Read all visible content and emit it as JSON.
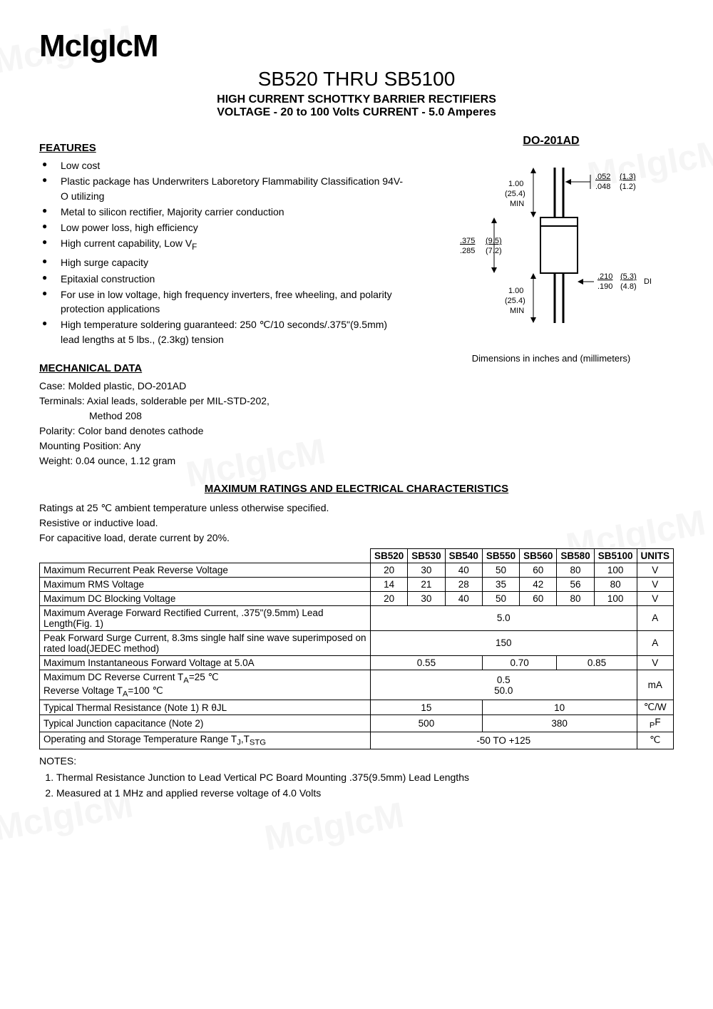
{
  "logo": "McIgIcM",
  "watermarks": [
    "McIgIcM",
    "McIgIcM",
    "McIgIcM",
    "McIgIcM",
    "McIgIcM",
    "McIgIcM"
  ],
  "title": {
    "main": "SB520 THRU SB5100",
    "line1": "HIGH CURRENT SCHOTTKY BARRIER RECTIFIERS",
    "line2": "VOLTAGE - 20 to 100 Volts    CURRENT - 5.0 Amperes"
  },
  "features": {
    "heading": "FEATURES",
    "items": [
      "Low cost",
      "Plastic package has Underwriters Laboretory Flammability Classification 94V-O utilizing",
      "Metal to silicon rectifier, Majority carrier conduction",
      "Low power loss, high efficiency",
      "High current capability, Low V",
      "High surge capacity",
      "Epitaxial construction",
      "For use in low voltage, high frequency inverters, free wheeling, and polarity protection applications",
      "High temperature soldering guaranteed: 250 ℃/10 seconds/.375\"(9.5mm) lead lengths at 5 lbs., (2.3kg) tension"
    ],
    "vf_sub": "F"
  },
  "package": {
    "name": "DO-201AD",
    "caption": "Dimensions in inches and (millimeters)",
    "dims": {
      "lead_len": "1.00\n(25.4)\nMIN",
      "body_len": {
        "in_max": ".375",
        "in_min": ".285",
        "mm_max": "(9.5)",
        "mm_min": "(7.2)"
      },
      "lead_dia": {
        "in_max": ".052",
        "in_min": ".048",
        "mm_max": "(1.3)",
        "mm_min": "(1.2)"
      },
      "body_dia": {
        "in_max": ".210",
        "in_min": ".190",
        "mm_max": "(5.3)",
        "mm_min": "(4.8)"
      },
      "dia_label": "DIA"
    }
  },
  "mechanical": {
    "heading": "MECHANICAL DATA",
    "lines": [
      "Case: Molded plastic, DO-201AD",
      "Terminals: Axial leads, solderable per MIL-STD-202,",
      "                  Method 208",
      "Polarity: Color band denotes cathode",
      "Mounting Position: Any",
      "Weight: 0.04 ounce, 1.12 gram"
    ]
  },
  "ratings": {
    "heading": "MAXIMUM RATINGS AND ELECTRICAL CHARACTERISTICS",
    "intro": [
      "Ratings at 25 ℃ ambient temperature unless otherwise specified.",
      "Resistive or inductive load.",
      "For capacitive load, derate current by 20%."
    ],
    "columns": [
      "SB520",
      "SB530",
      "SB540",
      "SB550",
      "SB560",
      "SB580",
      "SB5100",
      "UNITS"
    ],
    "rows": [
      {
        "param": "Maximum Recurrent Peak Reverse Voltage",
        "cells": [
          "20",
          "30",
          "40",
          "50",
          "60",
          "80",
          "100"
        ],
        "unit": "V"
      },
      {
        "param": "Maximum RMS Voltage",
        "cells": [
          "14",
          "21",
          "28",
          "35",
          "42",
          "56",
          "80"
        ],
        "unit": "V"
      },
      {
        "param": "Maximum DC Blocking Voltage",
        "cells": [
          "20",
          "30",
          "40",
          "50",
          "60",
          "80",
          "100"
        ],
        "unit": "V"
      },
      {
        "param": "Maximum Average Forward Rectified Current, .375\"(9.5mm) Lead Length(Fig. 1)",
        "span": {
          "colspan": 7,
          "value": "5.0"
        },
        "unit": "A"
      },
      {
        "param": "Peak Forward Surge Current, 8.3ms single half sine wave superimposed on rated load(JEDEC method)",
        "span": {
          "colspan": 7,
          "value": "150"
        },
        "unit": "A"
      },
      {
        "param": "Maximum Instantaneous Forward Voltage at 5.0A",
        "groups": [
          {
            "colspan": 3,
            "value": "0.55"
          },
          {
            "colspan": 2,
            "value": "0.70"
          },
          {
            "colspan": 2,
            "value": "0.85"
          }
        ],
        "unit": "V"
      },
      {
        "param_lines": [
          "Maximum DC Reverse Current T<sub>A</sub>=25 ℃",
          "Reverse Voltage T<sub>A</sub>=100 ℃"
        ],
        "span_lines": [
          {
            "colspan": 7,
            "value": "0.5"
          },
          {
            "colspan": 7,
            "value": "50.0"
          }
        ],
        "unit": "mA"
      },
      {
        "param": "Typical Thermal Resistance (Note 1) R θJL",
        "groups": [
          {
            "colspan": 3,
            "value": "15"
          },
          {
            "colspan": 4,
            "value": "10"
          }
        ],
        "unit": "℃/W"
      },
      {
        "param": "Typical Junction capacitance (Note 2)",
        "groups": [
          {
            "colspan": 3,
            "value": "500"
          },
          {
            "colspan": 4,
            "value": "380"
          }
        ],
        "unit_html": "<sub>P</sub>F"
      },
      {
        "param_html": "Operating and Storage Temperature Range T<sub>J</sub>,T<sub>STG</sub>",
        "span": {
          "colspan": 7,
          "value": "-50 TO +125"
        },
        "unit": "℃"
      }
    ]
  },
  "notes": {
    "heading": "NOTES:",
    "items": [
      "Thermal Resistance Junction to Lead Vertical PC Board Mounting .375(9.5mm) Lead Lengths",
      "Measured at 1 MHz and applied reverse voltage of 4.0 Volts"
    ]
  },
  "colors": {
    "text": "#000000",
    "bg": "#ffffff",
    "border": "#000000",
    "watermark": "rgba(0,0,0,0.04)"
  }
}
